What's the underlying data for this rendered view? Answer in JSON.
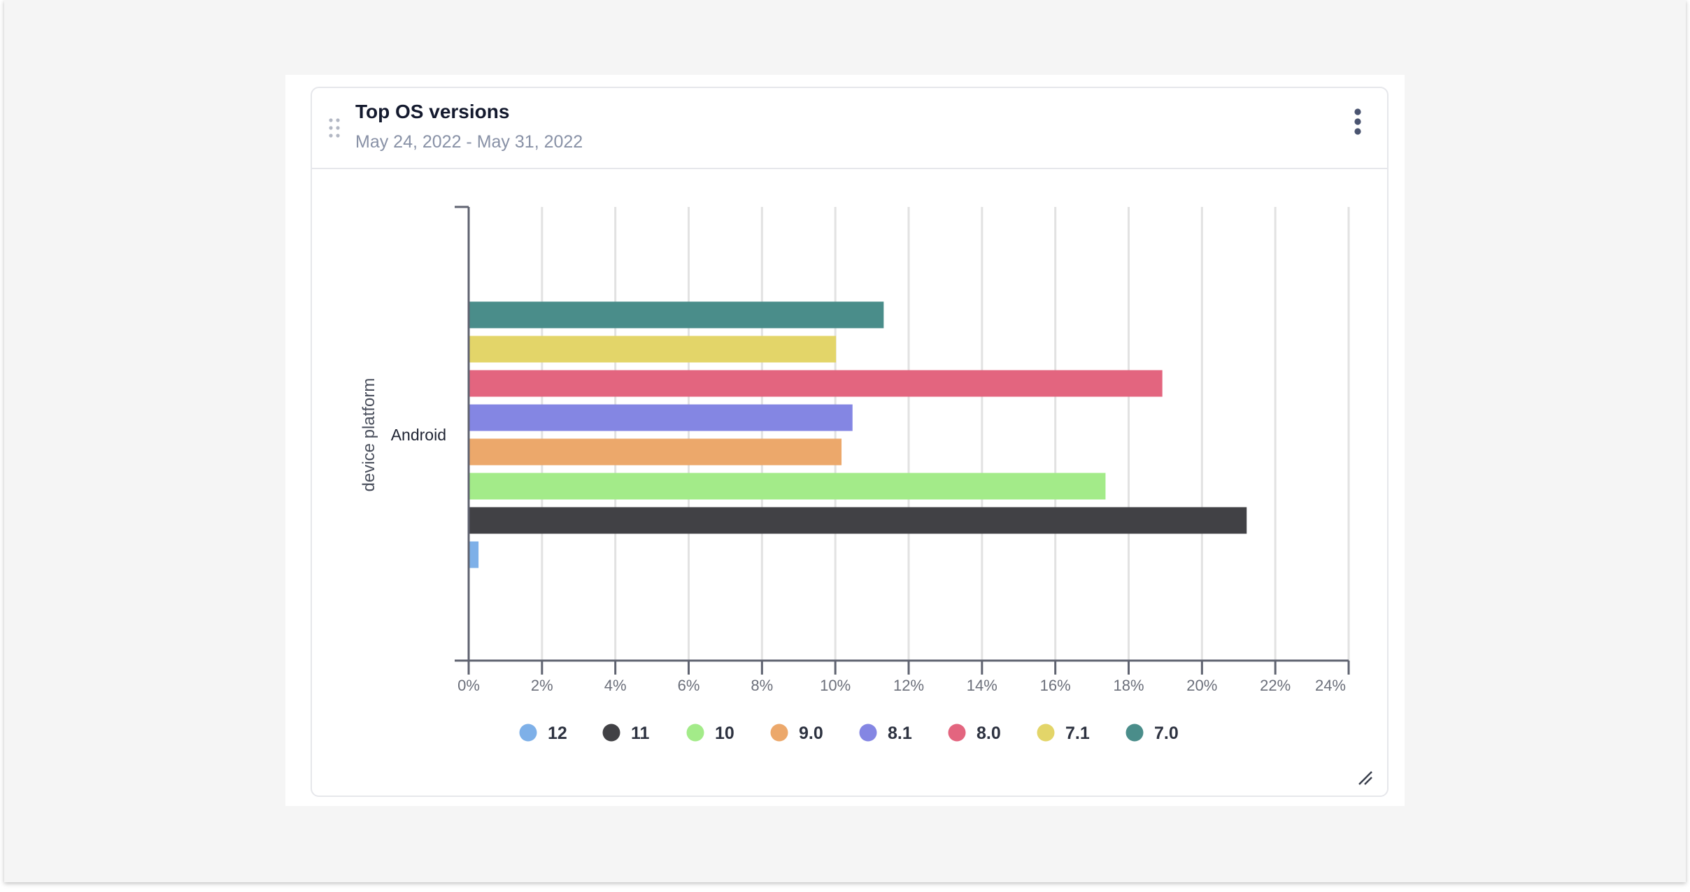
{
  "card": {
    "title": "Top OS versions",
    "date_range": "May 24, 2022 - May 31, 2022"
  },
  "colors": {
    "axis": "#5f6370",
    "grid": "#e2e2e2",
    "tick_text": "#6b6f7a",
    "legend_text": "#2d3240",
    "category_text": "#1f2433"
  },
  "chart_data": {
    "type": "bar",
    "orientation": "horizontal",
    "title": "Top OS versions",
    "xlabel": "",
    "ylabel": "device platform",
    "categories": [
      "Android"
    ],
    "xlim": [
      0,
      24
    ],
    "x_ticks": [
      0,
      2,
      4,
      6,
      8,
      10,
      12,
      14,
      16,
      18,
      20,
      22,
      24
    ],
    "x_tick_labels": [
      "0%",
      "2%",
      "4%",
      "6%",
      "8%",
      "10%",
      "12%",
      "14%",
      "16%",
      "18%",
      "20%",
      "22%",
      "24%"
    ],
    "grid": true,
    "legend_position": "bottom",
    "series": [
      {
        "name": "12",
        "color": "#7eb0e8",
        "values": [
          0.25
        ]
      },
      {
        "name": "11",
        "color": "#414145",
        "values": [
          21.2
        ]
      },
      {
        "name": "10",
        "color": "#a3eb89",
        "values": [
          17.35
        ]
      },
      {
        "name": "9.0",
        "color": "#eca86b",
        "values": [
          10.15
        ]
      },
      {
        "name": "8.1",
        "color": "#8486e3",
        "values": [
          10.45
        ]
      },
      {
        "name": "8.0",
        "color": "#e3657f",
        "values": [
          18.9
        ]
      },
      {
        "name": "7.1",
        "color": "#e3d569",
        "values": [
          10.0
        ]
      },
      {
        "name": "7.0",
        "color": "#4a8d8a",
        "values": [
          11.3
        ]
      }
    ]
  }
}
